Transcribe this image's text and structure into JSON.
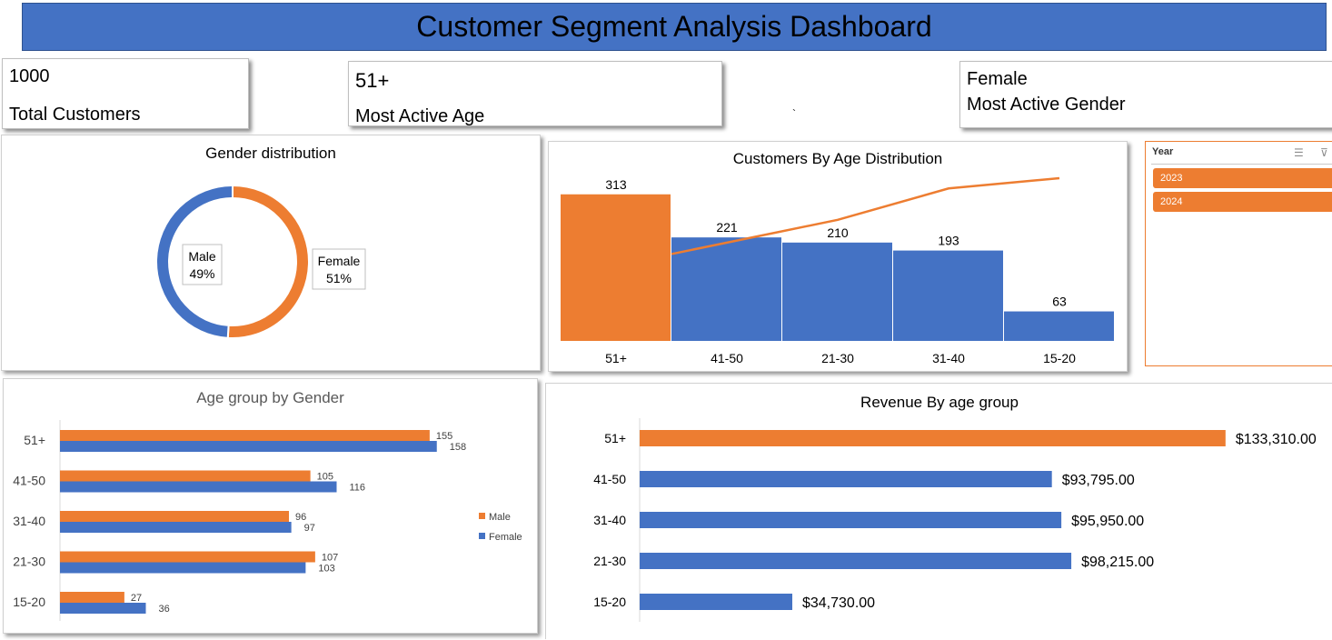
{
  "dashboard": {
    "title": "Customer Segment Analysis Dashboard"
  },
  "kpis": {
    "total": {
      "value": "1000",
      "label": "Total Customers"
    },
    "age": {
      "value": "51+",
      "label": "Most Active Age"
    },
    "gender": {
      "value": "Female",
      "label": "Most Active Gender"
    }
  },
  "stray_mark": "`",
  "slicer": {
    "title": "Year",
    "items": [
      {
        "label": "2023"
      },
      {
        "label": "2024"
      }
    ],
    "icons": [
      "multi-select-icon",
      "clear-filter-icon"
    ]
  },
  "colors": {
    "orange": "#ed7d31",
    "blue": "#4472c4"
  },
  "chart_data": [
    {
      "type": "pie",
      "title": "Gender distribution",
      "labels": [
        "Female",
        "Male"
      ],
      "values": [
        51,
        49
      ],
      "data_labels": [
        "Female\n51%",
        "Male\n49%"
      ],
      "colors": [
        "#ed7d31",
        "#4472c4"
      ]
    },
    {
      "type": "bar",
      "title": "Customers By Age Distribution",
      "categories": [
        "51+",
        "41-50",
        "21-30",
        "31-40",
        "15-20"
      ],
      "values": [
        313,
        221,
        210,
        193,
        63
      ],
      "cumulative_line": true,
      "ylim": [
        0,
        330
      ]
    },
    {
      "type": "bar",
      "orientation": "horizontal",
      "title": "Age group by Gender",
      "categories": [
        "51+",
        "41-50",
        "31-40",
        "21-30",
        "15-20"
      ],
      "series": [
        {
          "name": "Male",
          "values": [
            155,
            105,
            96,
            107,
            27
          ],
          "color": "#ed7d31"
        },
        {
          "name": "Female",
          "values": [
            158,
            116,
            97,
            103,
            36
          ],
          "color": "#4472c4"
        }
      ],
      "xlim": [
        0,
        160
      ],
      "legend": "right"
    },
    {
      "type": "bar",
      "orientation": "horizontal",
      "title": "Revenue By age group",
      "categories": [
        "51+",
        "41-50",
        "31-40",
        "21-30",
        "15-20"
      ],
      "values": [
        133310,
        93795,
        95950,
        98215,
        34730
      ],
      "data_labels": [
        "$133,310.00",
        "$93,795.00",
        "$95,950.00",
        "$98,215.00",
        "$34,730.00"
      ],
      "xlim": [
        0,
        135000
      ]
    }
  ]
}
